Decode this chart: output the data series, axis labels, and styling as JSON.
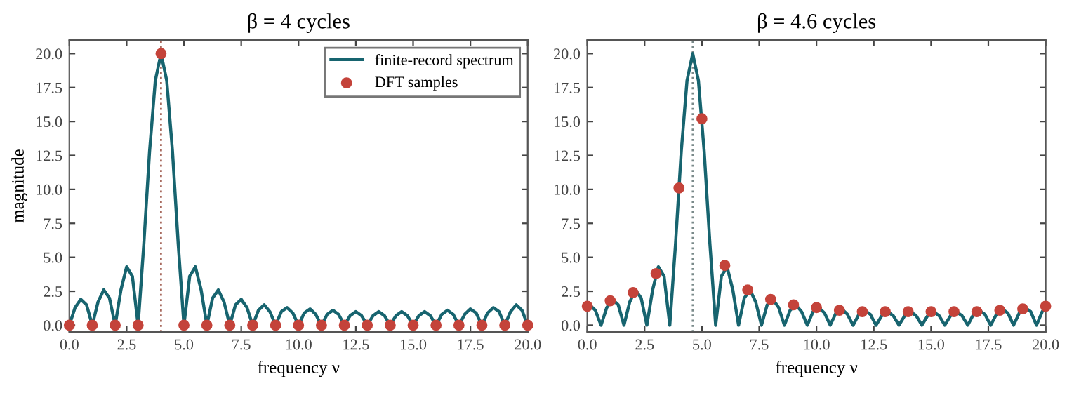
{
  "chart_data": [
    {
      "type": "line",
      "title": "β = 4 cycles",
      "xlabel": "frequency ν",
      "ylabel": "magnitude",
      "xlim": [
        0,
        20
      ],
      "ylim": [
        -0.5,
        21
      ],
      "xticks": [
        {
          "value": 0,
          "label": "0.0"
        },
        {
          "value": 2.5,
          "label": "2.5"
        },
        {
          "value": 5,
          "label": "5.0"
        },
        {
          "value": 7.5,
          "label": "7.5"
        },
        {
          "value": 10,
          "label": "10.0"
        },
        {
          "value": 12.5,
          "label": "12.5"
        },
        {
          "value": 15,
          "label": "15.0"
        },
        {
          "value": 17.5,
          "label": "17.5"
        },
        {
          "value": 20,
          "label": "20.0"
        }
      ],
      "yticks": [
        {
          "value": 0,
          "label": "0.0"
        },
        {
          "value": 2.5,
          "label": "2.5"
        },
        {
          "value": 5,
          "label": "5.0"
        },
        {
          "value": 7.5,
          "label": "7.5"
        },
        {
          "value": 10,
          "label": "10.0"
        },
        {
          "value": 12.5,
          "label": "12.5"
        },
        {
          "value": 15,
          "label": "15.0"
        },
        {
          "value": 17.5,
          "label": "17.5"
        },
        {
          "value": 20,
          "label": "20.0"
        }
      ],
      "legend": "top right",
      "ref_lines": [
        {
          "axis": "x",
          "value": 4,
          "color": "#a86a5e",
          "line_style": "dotted"
        }
      ],
      "series": [
        {
          "name": "finite-record spectrum",
          "color": "#17646f",
          "marker": "none",
          "x": [
            0,
            0.25,
            0.5,
            0.75,
            1,
            1.25,
            1.5,
            1.75,
            2,
            2.25,
            2.5,
            2.75,
            3,
            3.25,
            3.5,
            3.75,
            4,
            4.25,
            4.5,
            4.75,
            5,
            5.25,
            5.5,
            5.75,
            6,
            6.25,
            6.5,
            6.75,
            7,
            7.25,
            7.5,
            7.75,
            8,
            8.25,
            8.5,
            8.75,
            9,
            9.25,
            9.5,
            9.75,
            10,
            10.25,
            10.5,
            10.75,
            11,
            11.25,
            11.5,
            11.75,
            12,
            12.25,
            12.5,
            12.75,
            13,
            13.25,
            13.5,
            13.75,
            14,
            14.25,
            14.5,
            14.75,
            15,
            15.25,
            15.5,
            15.75,
            16,
            16.25,
            16.5,
            16.75,
            17,
            17.25,
            17.5,
            17.75,
            18,
            18.25,
            18.5,
            18.75,
            19,
            19.25,
            19.5,
            19.75,
            20
          ],
          "values": [
            0,
            1.3,
            1.9,
            1.5,
            0,
            1.7,
            2.6,
            2.0,
            0,
            2.6,
            4.3,
            3.6,
            0,
            6.0,
            12.8,
            18.0,
            20,
            18.0,
            12.8,
            6.0,
            0,
            3.6,
            4.3,
            2.6,
            0,
            2.0,
            2.6,
            1.7,
            0,
            1.5,
            1.9,
            1.3,
            0,
            1.1,
            1.5,
            1.0,
            0,
            1.0,
            1.3,
            0.9,
            0,
            0.9,
            1.2,
            0.8,
            0,
            0.8,
            1.1,
            0.8,
            0,
            0.7,
            1.0,
            0.7,
            0,
            0.7,
            1.0,
            0.7,
            0,
            0.7,
            1.0,
            0.7,
            0,
            0.7,
            1.0,
            0.7,
            0,
            0.8,
            1.1,
            0.8,
            0,
            0.8,
            1.2,
            0.9,
            0,
            0.9,
            1.3,
            1.0,
            0,
            1.0,
            1.5,
            1.1,
            0
          ]
        },
        {
          "type": "scatter",
          "name": "DFT samples",
          "color": "#c4433a",
          "marker": "circle",
          "x": [
            0,
            1,
            2,
            3,
            4,
            5,
            6,
            7,
            8,
            9,
            10,
            11,
            12,
            13,
            14,
            15,
            16,
            17,
            18,
            19,
            20
          ],
          "values": [
            0,
            0,
            0,
            0,
            20,
            0,
            0,
            0,
            0,
            0,
            0,
            0,
            0,
            0,
            0,
            0,
            0,
            0,
            0,
            0,
            0
          ]
        }
      ]
    },
    {
      "type": "line",
      "title": "β = 4.6 cycles",
      "xlabel": "frequency ν",
      "xlim": [
        0,
        20
      ],
      "ylim": [
        -0.5,
        21
      ],
      "xticks": [
        {
          "value": 0,
          "label": "0.0"
        },
        {
          "value": 2.5,
          "label": "2.5"
        },
        {
          "value": 5,
          "label": "5.0"
        },
        {
          "value": 7.5,
          "label": "7.5"
        },
        {
          "value": 10,
          "label": "10.0"
        },
        {
          "value": 12.5,
          "label": "12.5"
        },
        {
          "value": 15,
          "label": "15.0"
        },
        {
          "value": 17.5,
          "label": "17.5"
        },
        {
          "value": 20,
          "label": "20.0"
        }
      ],
      "yticks": [
        {
          "value": 0,
          "label": "0.0"
        },
        {
          "value": 2.5,
          "label": "2.5"
        },
        {
          "value": 5,
          "label": "5.0"
        },
        {
          "value": 7.5,
          "label": "7.5"
        },
        {
          "value": 10,
          "label": "10.0"
        },
        {
          "value": 12.5,
          "label": "12.5"
        },
        {
          "value": 15,
          "label": "15.0"
        },
        {
          "value": 17.5,
          "label": "17.5"
        },
        {
          "value": 20,
          "label": "20.0"
        }
      ],
      "ref_lines": [
        {
          "axis": "x",
          "value": 4.6,
          "color": "#7a8a8a",
          "line_style": "dotted"
        }
      ],
      "series": [
        {
          "color": "#17646f",
          "marker": "none",
          "x": [
            0,
            0.1,
            0.35,
            0.6,
            0.85,
            1.1,
            1.35,
            1.6,
            1.85,
            2.1,
            2.35,
            2.6,
            2.85,
            3.1,
            3.35,
            3.6,
            3.85,
            4.1,
            4.35,
            4.6,
            4.85,
            5.1,
            5.35,
            5.6,
            5.85,
            6.1,
            6.35,
            6.6,
            6.85,
            7.1,
            7.35,
            7.6,
            7.85,
            8.1,
            8.35,
            8.6,
            8.85,
            9.1,
            9.35,
            9.6,
            9.85,
            10.1,
            10.35,
            10.6,
            10.85,
            11.1,
            11.35,
            11.6,
            11.85,
            12.1,
            12.35,
            12.6,
            12.85,
            13.1,
            13.35,
            13.6,
            13.85,
            14.1,
            14.35,
            14.6,
            14.85,
            15.1,
            15.35,
            15.6,
            15.85,
            16.1,
            16.35,
            16.6,
            16.85,
            17.1,
            17.35,
            17.6,
            17.85,
            18.1,
            18.35,
            18.6,
            18.85,
            19.1,
            19.35,
            19.6,
            19.85,
            20
          ],
          "values": [
            1.4,
            1.5,
            1.1,
            0,
            1.3,
            1.9,
            1.5,
            0,
            1.7,
            2.6,
            2.0,
            0,
            2.6,
            4.3,
            3.6,
            0,
            6.0,
            12.8,
            18.0,
            20,
            18.0,
            12.8,
            6.0,
            0,
            3.6,
            4.3,
            2.6,
            0,
            2.0,
            2.6,
            1.7,
            0,
            1.5,
            1.9,
            1.3,
            0,
            1.1,
            1.5,
            1.0,
            0,
            1.0,
            1.3,
            0.9,
            0,
            0.9,
            1.2,
            0.8,
            0,
            0.8,
            1.1,
            0.8,
            0,
            0.7,
            1.0,
            0.7,
            0,
            0.7,
            1.0,
            0.7,
            0,
            0.7,
            1.0,
            0.7,
            0,
            0.7,
            1.0,
            0.7,
            0,
            0.8,
            1.1,
            0.8,
            0,
            0.8,
            1.2,
            0.9,
            0,
            0.9,
            1.3,
            1.0,
            0,
            1.0,
            1.4
          ]
        },
        {
          "type": "scatter",
          "color": "#c4433a",
          "marker": "circle",
          "x": [
            0,
            1,
            2,
            3,
            4,
            5,
            6,
            7,
            8,
            9,
            10,
            11,
            12,
            13,
            14,
            15,
            16,
            17,
            18,
            19,
            20
          ],
          "values": [
            1.4,
            1.8,
            2.4,
            3.8,
            10.1,
            15.2,
            4.4,
            2.6,
            1.9,
            1.5,
            1.3,
            1.1,
            1.0,
            1.0,
            1.0,
            1.0,
            1.0,
            1.0,
            1.1,
            1.2,
            1.4
          ]
        }
      ]
    }
  ]
}
